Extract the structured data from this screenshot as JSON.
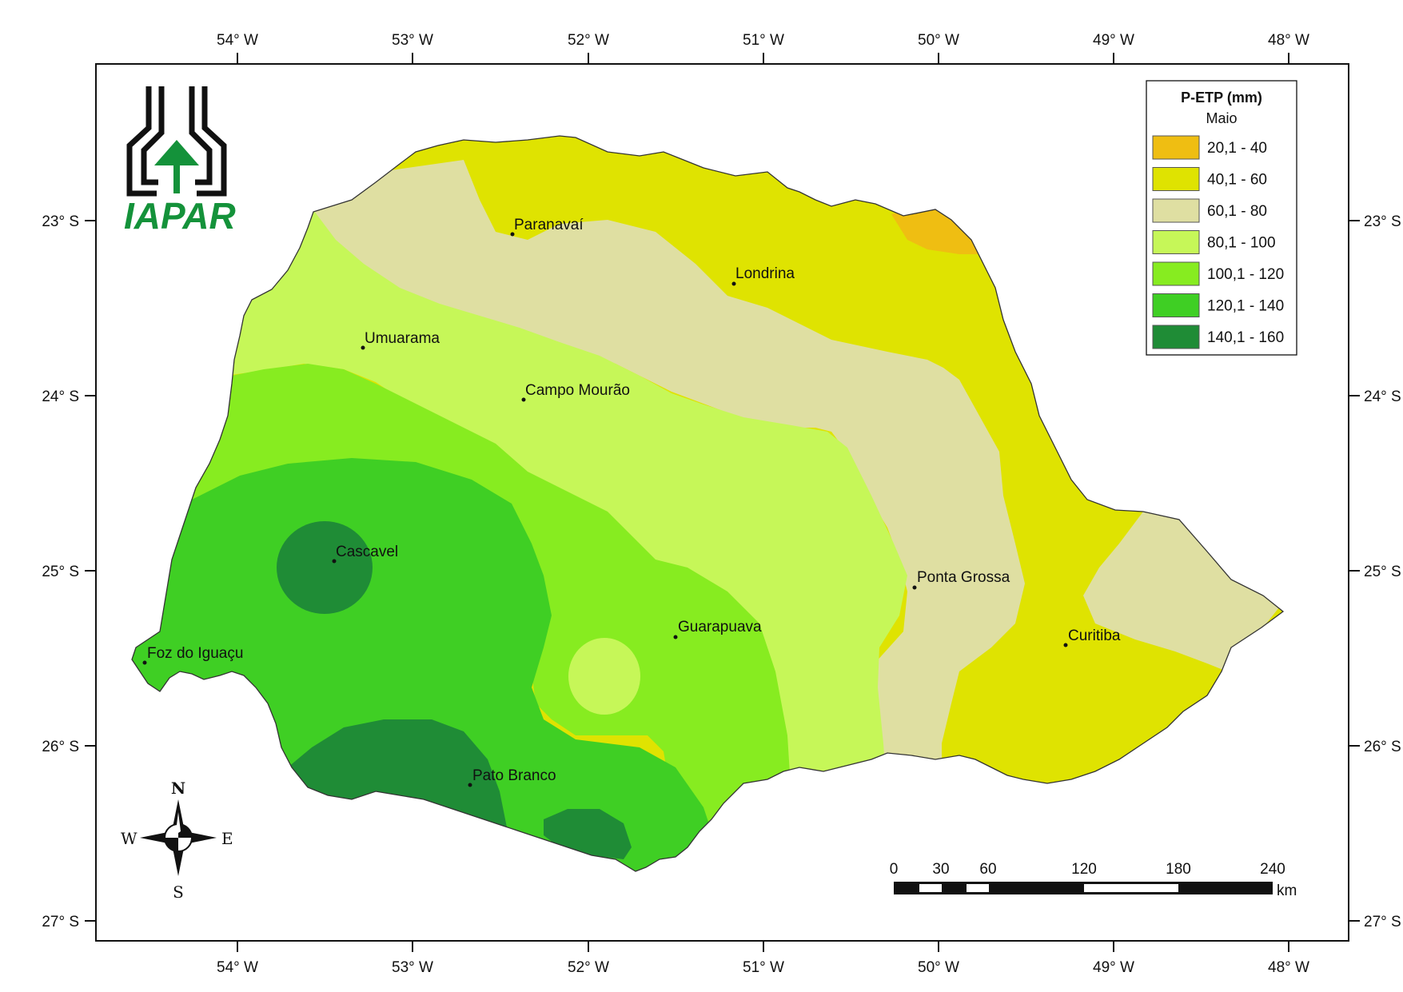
{
  "map": {
    "legend": {
      "title": "P-ETP (mm)",
      "subtitle": "Maio",
      "classes": [
        {
          "label": "20,1 - 40",
          "color": "#efbe12"
        },
        {
          "label": "40,1 - 60",
          "color": "#dfe301"
        },
        {
          "label": "60,1 - 80",
          "color": "#dfdfa2"
        },
        {
          "label": "80,1 - 100",
          "color": "#c6f758"
        },
        {
          "label": "100,1 - 120",
          "color": "#87ec20"
        },
        {
          "label": "120,1 - 140",
          "color": "#3fcf24"
        },
        {
          "label": "140,1 - 160",
          "color": "#1f8c36"
        }
      ]
    },
    "longitude_labels": [
      "54° W",
      "53° W",
      "52° W",
      "51° W",
      "50° W",
      "49° W",
      "48° W"
    ],
    "latitude_labels": [
      "23° S",
      "24° S",
      "25° S",
      "26° S",
      "27° S"
    ],
    "cities": [
      "Paranavaí",
      "Londrina",
      "Umuarama",
      "Campo Mourão",
      "Cascavel",
      "Ponta Grossa",
      "Guarapuava",
      "Curitiba",
      "Foz do Iguaçu",
      "Pato Branco"
    ],
    "scale_bar": {
      "ticks": [
        "0",
        "30",
        "60",
        "120",
        "180",
        "240"
      ],
      "unit": "km"
    },
    "compass": {
      "n": "N",
      "s": "S",
      "e": "E",
      "w": "W"
    },
    "logo_text": "IAPAR"
  }
}
